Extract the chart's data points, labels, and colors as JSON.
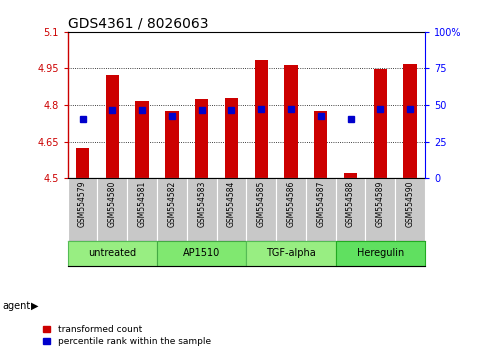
{
  "title": "GDS4361 / 8026063",
  "samples": [
    "GSM554579",
    "GSM554580",
    "GSM554581",
    "GSM554582",
    "GSM554583",
    "GSM554584",
    "GSM554585",
    "GSM554586",
    "GSM554587",
    "GSM554588",
    "GSM554589",
    "GSM554590"
  ],
  "bar_values": [
    4.625,
    4.925,
    4.815,
    4.775,
    4.825,
    4.83,
    4.985,
    4.965,
    4.775,
    4.52,
    4.948,
    4.97
  ],
  "percentile_values": [
    4.745,
    4.78,
    4.78,
    4.755,
    4.78,
    4.78,
    4.785,
    4.785,
    4.755,
    4.745,
    4.785,
    4.785
  ],
  "ymin": 4.5,
  "ymax": 5.1,
  "yticks": [
    4.5,
    4.65,
    4.8,
    4.95,
    5.1
  ],
  "ytick_labels": [
    "4.5",
    "4.65",
    "4.8",
    "4.95",
    "5.1"
  ],
  "right_ytick_labels": [
    "0",
    "25",
    "50",
    "75",
    "100%"
  ],
  "bar_color": "#CC0000",
  "percentile_color": "#0000CC",
  "bar_bottom": 4.5,
  "groups": [
    {
      "label": "untreated",
      "start": 0,
      "end": 3,
      "color": "#98EE82"
    },
    {
      "label": "AP1510",
      "start": 3,
      "end": 6,
      "color": "#80E870"
    },
    {
      "label": "TGF-alpha",
      "start": 6,
      "end": 9,
      "color": "#98EE82"
    },
    {
      "label": "Heregulin",
      "start": 9,
      "end": 12,
      "color": "#60E060"
    }
  ],
  "agent_label": "agent",
  "legend_items": [
    {
      "label": "transformed count",
      "color": "#CC0000"
    },
    {
      "label": "percentile rank within the sample",
      "color": "#0000CC"
    }
  ],
  "sample_bg": "#C8C8C8",
  "title_fontsize": 10,
  "tick_fontsize": 7,
  "sample_fontsize": 5.5,
  "group_fontsize": 7,
  "legend_fontsize": 6.5
}
